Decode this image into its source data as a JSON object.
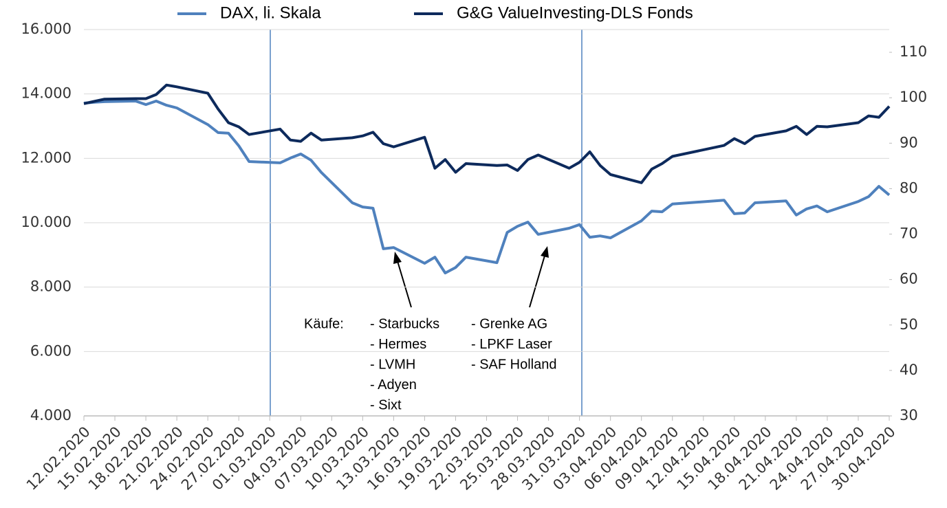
{
  "chart_data": {
    "type": "line",
    "x": [
      "12.02.2020",
      "13.02.2020",
      "14.02.2020",
      "17.02.2020",
      "18.02.2020",
      "19.02.2020",
      "20.02.2020",
      "21.02.2020",
      "24.02.2020",
      "25.02.2020",
      "26.02.2020",
      "27.02.2020",
      "28.02.2020",
      "02.03.2020",
      "03.03.2020",
      "04.03.2020",
      "05.03.2020",
      "06.03.2020",
      "09.03.2020",
      "10.03.2020",
      "11.03.2020",
      "12.03.2020",
      "13.03.2020",
      "16.03.2020",
      "17.03.2020",
      "18.03.2020",
      "19.03.2020",
      "20.03.2020",
      "23.03.2020",
      "24.03.2020",
      "25.03.2020",
      "26.03.2020",
      "27.03.2020",
      "30.03.2020",
      "31.03.2020",
      "01.04.2020",
      "02.04.2020",
      "03.04.2020",
      "06.04.2020",
      "07.04.2020",
      "08.04.2020",
      "09.04.2020",
      "14.04.2020",
      "15.04.2020",
      "16.04.2020",
      "17.04.2020",
      "20.04.2020",
      "21.04.2020",
      "22.04.2020",
      "23.04.2020",
      "24.04.2020",
      "27.04.2020",
      "28.04.2020",
      "29.04.2020",
      "30.04.2020"
    ],
    "series": [
      {
        "name": "DAX, li. Skala",
        "color": "#4f81bd",
        "values": [
          13715,
          13740,
          13760,
          13780,
          13670,
          13780,
          13650,
          13565,
          13050,
          12800,
          12780,
          12390,
          11900,
          11860,
          12010,
          12135,
          11940,
          11560,
          10620,
          10490,
          10450,
          9190,
          9230,
          8740,
          8930,
          8440,
          8610,
          8930,
          8760,
          9700,
          9890,
          10020,
          9640,
          9830,
          9940,
          9550,
          9590,
          9530,
          10060,
          10360,
          10340,
          10580,
          10700,
          10280,
          10300,
          10620,
          10680,
          10240,
          10430,
          10520,
          10340,
          10660,
          10810,
          11130,
          10860
        ]
      },
      {
        "name": "G&G ValueInvesting-DLS Fonds",
        "color": "#0d2a5c",
        "axis": "y2",
        "values": [
          98.7,
          99.2,
          99.7,
          99.8,
          99.8,
          100.7,
          102.8,
          102.4,
          101.0,
          97.5,
          94.5,
          93.6,
          91.9,
          93.1,
          90.7,
          90.4,
          92.2,
          90.7,
          91.2,
          91.6,
          92.4,
          89.9,
          89.2,
          91.3,
          84.5,
          86.4,
          83.6,
          85.5,
          85.1,
          85.2,
          84.0,
          86.4,
          87.4,
          84.5,
          85.8,
          88.1,
          85.1,
          83.1,
          81.3,
          84.3,
          85.5,
          87.1,
          89.5,
          91.0,
          89.9,
          91.5,
          92.7,
          93.7,
          91.9,
          93.7,
          93.6,
          94.5,
          96.0,
          95.7,
          98.1
        ]
      }
    ],
    "xlim": [
      "12.02.2020",
      "30.04.2020"
    ],
    "xticks": [
      "12.02.2020",
      "15.02.2020",
      "18.02.2020",
      "21.02.2020",
      "24.02.2020",
      "27.02.2020",
      "01.03.2020",
      "04.03.2020",
      "07.03.2020",
      "10.03.2020",
      "13.03.2020",
      "16.03.2020",
      "19.03.2020",
      "22.03.2020",
      "25.03.2020",
      "28.03.2020",
      "31.03.2020",
      "03.04.2020",
      "06.04.2020",
      "09.04.2020",
      "12.04.2020",
      "15.04.2020",
      "18.04.2020",
      "21.04.2020",
      "24.04.2020",
      "27.04.2020",
      "30.04.2020"
    ],
    "ylim": [
      4000,
      16000
    ],
    "yticks": [
      {
        "value": 4000,
        "label": "4.000"
      },
      {
        "value": 6000,
        "label": "6.000"
      },
      {
        "value": 8000,
        "label": "8.000"
      },
      {
        "value": 10000,
        "label": "10.000"
      },
      {
        "value": 12000,
        "label": "12.000"
      },
      {
        "value": 14000,
        "label": "14.000"
      },
      {
        "value": 16000,
        "label": "16.000"
      }
    ],
    "y2lim": [
      30,
      115
    ],
    "y2ticks": [
      30,
      40,
      50,
      60,
      70,
      80,
      90,
      100,
      110
    ],
    "grid": true,
    "annotation": {
      "label": "Käufe:",
      "groups": [
        [
          "- Starbucks",
          "- Hermes",
          "- LVMH",
          "- Adyen",
          "- Sixt"
        ],
        [
          "- Grenke AG",
          "- LPKF Laser",
          "- SAF Holland"
        ]
      ]
    }
  }
}
